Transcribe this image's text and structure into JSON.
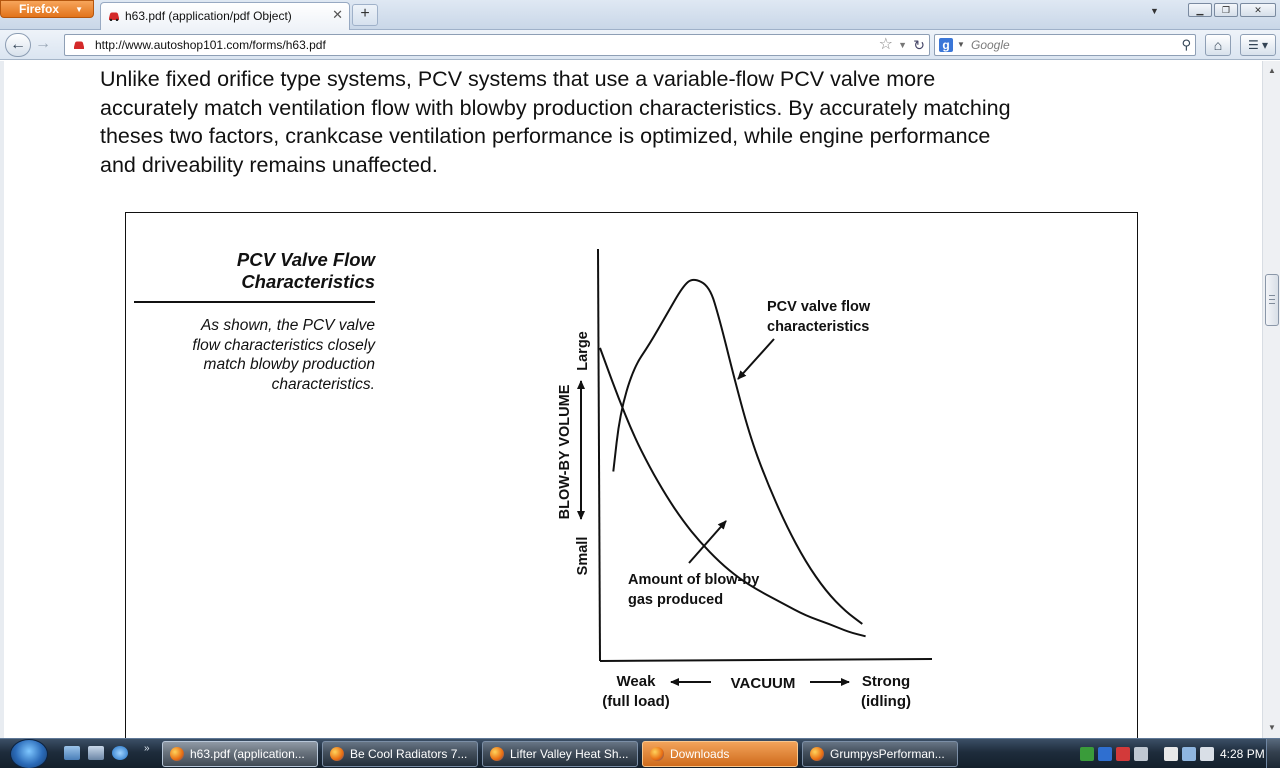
{
  "browser": {
    "app_button_label": "Firefox",
    "tab_title": "h63.pdf (application/pdf Object)",
    "new_tab_label": "+",
    "url": "http://www.autoshop101.com/forms/h63.pdf",
    "search_placeholder": "Google"
  },
  "document": {
    "paragraph_lines": [
      "Unlike fixed orifice type systems, PCV systems that use a variable-flow PCV valve more",
      "accurately match ventilation flow with blowby production characteristics. By accurately matching",
      "theses two factors, crankcase ventilation performance is optimized, while engine performance",
      "and driveability remains unaffected."
    ],
    "figure": {
      "title_lines": [
        "PCV Valve Flow",
        "Characteristics"
      ],
      "caption_lines": [
        "As shown, the PCV valve",
        "flow characteristics closely",
        "match blowby production",
        "characteristics."
      ]
    }
  },
  "chart_data": {
    "type": "line",
    "title": "",
    "ylabel": "BLOW-BY VOLUME",
    "y_ends": [
      "Small",
      "Large"
    ],
    "xlabel": "VACUUM",
    "x_ends": [
      [
        "Weak",
        "(full load)"
      ],
      [
        "Strong",
        "(idling)"
      ]
    ],
    "annotations": [
      {
        "lines": [
          "PCV valve flow",
          "characteristics"
        ]
      },
      {
        "lines": [
          "Amount of blow-by",
          "gas produced"
        ]
      }
    ],
    "scale_note": "qualitative curves; x 0 = weak vacuum to 100 = strong vacuum, y 0 = small to 100 = large volume",
    "series": [
      {
        "name": "PCV valve flow characteristics",
        "points": [
          [
            4,
            46
          ],
          [
            6,
            60
          ],
          [
            10,
            71
          ],
          [
            15,
            77
          ],
          [
            20,
            84
          ],
          [
            25,
            91
          ],
          [
            28,
            93
          ],
          [
            33,
            91
          ],
          [
            36,
            83
          ],
          [
            40,
            70
          ],
          [
            45,
            55
          ],
          [
            50,
            44
          ],
          [
            56,
            33
          ],
          [
            62,
            24
          ],
          [
            68,
            17
          ],
          [
            74,
            12
          ],
          [
            79,
            9
          ]
        ]
      },
      {
        "name": "Amount of blow-by gas produced",
        "points": [
          [
            0,
            76
          ],
          [
            5,
            65
          ],
          [
            10,
            55
          ],
          [
            15,
            47
          ],
          [
            20,
            40
          ],
          [
            25,
            34
          ],
          [
            30,
            29
          ],
          [
            36,
            24
          ],
          [
            42,
            20
          ],
          [
            48,
            17
          ],
          [
            55,
            14
          ],
          [
            62,
            11
          ],
          [
            69,
            9
          ],
          [
            75,
            7
          ],
          [
            80,
            6
          ]
        ]
      }
    ]
  },
  "taskbar": {
    "items": [
      "h63.pdf (application...",
      "Be Cool Radiators 7...",
      "Lifter Valley Heat Sh...",
      "Downloads",
      "GrumpysPerforman..."
    ],
    "clock": "4:28 PM"
  }
}
